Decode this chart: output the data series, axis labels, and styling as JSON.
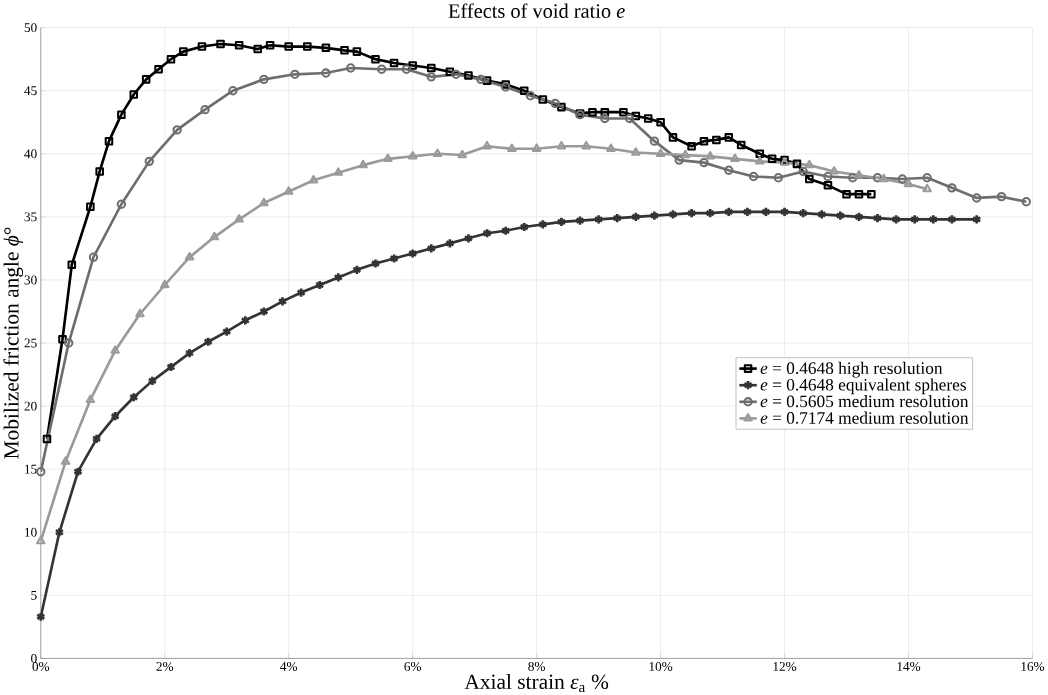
{
  "chart_data": {
    "type": "line",
    "title": "Effects of void ratio *e*",
    "xlabel": "Axial strain *ε*$_{a}$ %",
    "ylabel": "Mobilized friction angle *ϕ*°",
    "xlim": [
      0,
      16
    ],
    "ylim": [
      0,
      50
    ],
    "xticks": [
      {
        "value": 0,
        "label": "0%"
      },
      {
        "value": 2,
        "label": "2%"
      },
      {
        "value": 4,
        "label": "4%"
      },
      {
        "value": 6,
        "label": "6%"
      },
      {
        "value": 8,
        "label": "8%"
      },
      {
        "value": 10,
        "label": "10%"
      },
      {
        "value": 12,
        "label": "12%"
      },
      {
        "value": 14,
        "label": "14%"
      },
      {
        "value": 16,
        "label": "16%"
      }
    ],
    "yticks": [
      0,
      5,
      10,
      15,
      20,
      25,
      30,
      35,
      40,
      45,
      50
    ],
    "grid": true,
    "legend": "right",
    "line_style": "solid",
    "series": [
      {
        "name": "*e* = 0.4648 high resolution",
        "color": "#000000",
        "marker": "square",
        "x": [
          0.1,
          0.35,
          0.5,
          0.8,
          0.95,
          1.1,
          1.3,
          1.5,
          1.7,
          1.9,
          2.1,
          2.3,
          2.6,
          2.9,
          3.2,
          3.5,
          3.7,
          4.0,
          4.3,
          4.6,
          4.9,
          5.1,
          5.4,
          5.7,
          6.0,
          6.3,
          6.6,
          6.9,
          7.2,
          7.5,
          7.8,
          8.1,
          8.4,
          8.7,
          8.9,
          9.1,
          9.4,
          9.6,
          9.8,
          10.0,
          10.2,
          10.5,
          10.7,
          10.9,
          11.1,
          11.3,
          11.6,
          11.8,
          12.0,
          12.2,
          12.4,
          12.7,
          13.0,
          13.2,
          13.4
        ],
        "values": [
          17.4,
          25.3,
          31.2,
          35.8,
          38.6,
          41,
          43.1,
          44.7,
          45.9,
          46.7,
          47.5,
          48.1,
          48.5,
          48.7,
          48.6,
          48.3,
          48.6,
          48.5,
          48.5,
          48.4,
          48.2,
          48.1,
          47.5,
          47.2,
          47.0,
          46.8,
          46.5,
          46.2,
          45.8,
          45.5,
          45.0,
          44.3,
          43.7,
          43.2,
          43.3,
          43.3,
          43.3,
          43.0,
          42.8,
          42.5,
          41.3,
          40.6,
          41.0,
          41.1,
          41.3,
          40.7,
          40.0,
          39.6,
          39.5,
          39.2,
          38.0,
          37.5,
          36.8,
          36.8,
          36.8
        ]
      },
      {
        "name": "*e* = 0.4648 equivalent spheres",
        "color": "#333333",
        "marker": "cross",
        "x": [
          0,
          0.3,
          0.6,
          0.9,
          1.2,
          1.5,
          1.8,
          2.1,
          2.4,
          2.7,
          3.0,
          3.3,
          3.6,
          3.9,
          4.2,
          4.5,
          4.8,
          5.1,
          5.4,
          5.7,
          6.0,
          6.3,
          6.6,
          6.9,
          7.2,
          7.5,
          7.8,
          8.1,
          8.4,
          8.7,
          9.0,
          9.3,
          9.6,
          9.9,
          10.2,
          10.5,
          10.8,
          11.1,
          11.4,
          11.7,
          12.0,
          12.3,
          12.6,
          12.9,
          13.2,
          13.5,
          13.8,
          14.1,
          14.4,
          14.7,
          15.1
        ],
        "values": [
          3.3,
          10,
          14.8,
          17.4,
          19.2,
          20.7,
          22,
          23.1,
          24.2,
          25.1,
          25.9,
          26.8,
          27.5,
          28.3,
          29,
          29.6,
          30.2,
          30.8,
          31.3,
          31.7,
          32.1,
          32.5,
          32.9,
          33.3,
          33.7,
          33.9,
          34.2,
          34.4,
          34.6,
          34.7,
          34.8,
          34.9,
          35.0,
          35.1,
          35.2,
          35.3,
          35.3,
          35.4,
          35.4,
          35.4,
          35.4,
          35.3,
          35.2,
          35.1,
          35.0,
          34.9,
          34.8,
          34.8,
          34.8,
          34.8,
          34.8
        ]
      },
      {
        "name": "*e* = 0.5605 medium resolution",
        "color": "#6e6e6e",
        "marker": "circle",
        "x": [
          0,
          0.45,
          0.85,
          1.3,
          1.75,
          2.2,
          2.65,
          3.1,
          3.6,
          4.1,
          4.6,
          5.0,
          5.5,
          5.9,
          6.3,
          6.7,
          7.1,
          7.5,
          7.9,
          8.3,
          8.7,
          9.1,
          9.5,
          9.9,
          10.3,
          10.7,
          11.1,
          11.5,
          11.9,
          12.3,
          12.7,
          13.1,
          13.5,
          13.9,
          14.3,
          14.7,
          15.1,
          15.5,
          15.9
        ],
        "values": [
          14.8,
          25,
          31.8,
          36,
          39.4,
          41.9,
          43.5,
          45,
          45.9,
          46.3,
          46.4,
          46.8,
          46.7,
          46.7,
          46.1,
          46.3,
          45.9,
          45.3,
          44.6,
          44.0,
          43.1,
          42.8,
          42.8,
          41.0,
          39.5,
          39.3,
          38.7,
          38.2,
          38.1,
          38.6,
          38.2,
          38.1,
          38.1,
          38.0,
          38.1,
          37.3,
          36.5,
          36.6,
          36.2
        ]
      },
      {
        "name": "*e* = 0.7174 medium resolution",
        "color": "#9a9a9a",
        "marker": "triangle",
        "x": [
          0,
          0.4,
          0.8,
          1.2,
          1.6,
          2.0,
          2.4,
          2.8,
          3.2,
          3.6,
          4.0,
          4.4,
          4.8,
          5.2,
          5.6,
          6.0,
          6.4,
          6.8,
          7.2,
          7.6,
          8.0,
          8.4,
          8.8,
          9.2,
          9.6,
          10.0,
          10.4,
          10.8,
          11.2,
          11.6,
          12.0,
          12.4,
          12.8,
          13.2,
          13.6,
          14.0,
          14.3
        ],
        "values": [
          9.3,
          15.6,
          20.5,
          24.4,
          27.3,
          29.6,
          31.8,
          33.4,
          34.8,
          36.1,
          37,
          37.9,
          38.5,
          39.1,
          39.6,
          39.8,
          40.0,
          39.9,
          40.6,
          40.4,
          40.4,
          40.6,
          40.6,
          40.4,
          40.1,
          40.0,
          39.9,
          39.8,
          39.6,
          39.4,
          39.3,
          39.1,
          38.6,
          38.3,
          38.0,
          37.6,
          37.2
        ]
      }
    ]
  }
}
